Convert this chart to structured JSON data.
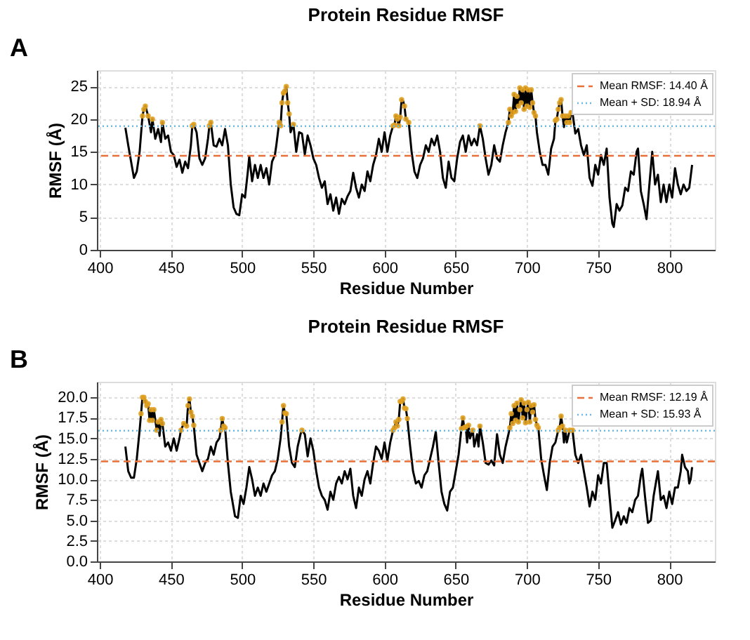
{
  "chart_data": [
    {
      "type": "line",
      "title": "Protein Residue RMSF",
      "xlabel": "Residue Number",
      "ylabel": "RMSF (Å)",
      "annotations": [
        "A"
      ],
      "xlim": [
        398,
        832
      ],
      "xticks": [
        400,
        450,
        500,
        550,
        600,
        650,
        700,
        750,
        800
      ],
      "ylim": [
        0,
        27.5
      ],
      "yticks": [
        0,
        5,
        10,
        15,
        20,
        25
      ],
      "grid": true,
      "legend": "top right",
      "series": [
        {
          "type": "line",
          "color": "#000000",
          "x": [
            418,
            420,
            422,
            424,
            426,
            428,
            430,
            431,
            432,
            434,
            436,
            437,
            439,
            441,
            443,
            444,
            446,
            448,
            450,
            452,
            454,
            456,
            458,
            460,
            462,
            464,
            465,
            466,
            468,
            470,
            472,
            474,
            476,
            477,
            478,
            480,
            482,
            484,
            486,
            488,
            490,
            492,
            494,
            496,
            498,
            500,
            502,
            504,
            505,
            507,
            509,
            511,
            513,
            515,
            517,
            519,
            521,
            523,
            524,
            526,
            527,
            528,
            529,
            530,
            531,
            532,
            533,
            534,
            536,
            538,
            540,
            542,
            544,
            546,
            548,
            550,
            552,
            554,
            556,
            558,
            560,
            562,
            564,
            566,
            568,
            570,
            572,
            574,
            576,
            578,
            580,
            582,
            584,
            586,
            588,
            590,
            592,
            594,
            596,
            598,
            600,
            602,
            604,
            606,
            607,
            608,
            609,
            610,
            611,
            612,
            613,
            614,
            615,
            616,
            617,
            619,
            621,
            623,
            625,
            627,
            629,
            631,
            633,
            635,
            637,
            639,
            641,
            643,
            645,
            647,
            649,
            651,
            653,
            655,
            657,
            659,
            661,
            663,
            665,
            667,
            669,
            671,
            673,
            675,
            677,
            679,
            681,
            683,
            685,
            687,
            688,
            689,
            690,
            691,
            692,
            693,
            694,
            695,
            696,
            697,
            698,
            699,
            700,
            701,
            702,
            703,
            704,
            705,
            706,
            707,
            709,
            711,
            713,
            715,
            717,
            719,
            720,
            721,
            722,
            723,
            724,
            725,
            726,
            727,
            728,
            729,
            730,
            731,
            732,
            734,
            736,
            738,
            740,
            742,
            744,
            746,
            748,
            750,
            752,
            754,
            756,
            758,
            760,
            761,
            763,
            765,
            767,
            769,
            771,
            773,
            775,
            777,
            778,
            780,
            782,
            784,
            786,
            788,
            790,
            792,
            794,
            796,
            798,
            800,
            802,
            804,
            806,
            808,
            810,
            812,
            814,
            816
          ],
          "values": [
            18.7,
            16,
            13.5,
            11,
            12,
            15,
            20.5,
            21.5,
            22,
            20.5,
            18,
            20,
            17,
            18.5,
            16.5,
            19.5,
            17,
            17.5,
            15,
            14.5,
            12.7,
            13.8,
            11.8,
            13.5,
            12.5,
            16,
            19,
            19.2,
            18,
            14,
            13,
            14,
            17,
            19,
            19.5,
            16,
            15.8,
            17,
            16,
            18.5,
            16,
            10,
            6.5,
            5.5,
            5.3,
            8.5,
            8,
            12,
            14.3,
            10.5,
            13,
            11,
            13,
            11,
            12.5,
            10,
            13.5,
            14.5,
            16,
            19.5,
            19,
            22.5,
            24,
            24.3,
            25,
            22.5,
            20.8,
            18,
            19.2,
            15,
            18,
            17.8,
            14.6,
            17.5,
            16,
            14,
            13,
            11,
            9.5,
            10.5,
            7,
            8.5,
            6,
            8,
            5.5,
            7.8,
            7,
            8.2,
            9,
            11.8,
            9.5,
            8,
            10,
            9,
            12,
            10.5,
            13,
            14.5,
            17,
            15,
            18,
            15,
            17.5,
            19,
            19.1,
            20.5,
            20,
            19,
            20.3,
            23,
            22.8,
            22,
            20,
            19.8,
            19.5,
            15,
            12,
            11,
            13,
            14,
            16,
            15,
            17,
            16,
            17.5,
            15,
            11,
            9.5,
            13.5,
            11,
            10.5,
            14,
            16.5,
            17.5,
            15,
            17.5,
            16,
            17,
            16,
            19,
            17,
            14,
            11.5,
            13,
            16,
            14,
            13.5,
            16,
            18,
            19.5,
            21.5,
            20.5,
            21,
            23.8,
            21.2,
            23.5,
            22,
            24.8,
            22.5,
            24.5,
            21.5,
            24.8,
            22,
            24.5,
            21.8,
            24.5,
            22.5,
            21,
            20.5,
            18,
            15,
            13,
            13,
            11.5,
            15.5,
            17,
            19.8,
            20,
            21.5,
            22.5,
            23,
            20.5,
            18.8,
            20.5,
            19.5,
            20.5,
            19.5,
            21,
            21,
            17.8,
            18.5,
            16,
            14.5,
            16,
            11,
            9.8,
            13,
            11.5,
            14.5,
            13,
            15.5,
            8,
            4,
            3.5,
            7,
            6,
            6.8,
            9.5,
            9,
            12,
            11.5,
            15,
            15.5,
            9,
            7,
            4.7,
            10,
            15,
            10,
            11.5,
            7.3,
            10,
            7.3,
            10,
            8,
            12.5,
            10,
            8.5,
            10,
            9,
            9.5,
            13
          ]
        },
        {
          "type": "scatter",
          "color": "#e0a020",
          "marker": "circle",
          "x": [
            430,
            431,
            432,
            434,
            437,
            444,
            465,
            466,
            477,
            478,
            526,
            527,
            528,
            529,
            530,
            531,
            532,
            533,
            536,
            606,
            607,
            608,
            609,
            610,
            611,
            612,
            614,
            615,
            617,
            667,
            687,
            688,
            689,
            690,
            691,
            692,
            693,
            694,
            695,
            696,
            697,
            698,
            699,
            700,
            701,
            702,
            703,
            704,
            705,
            706,
            720,
            721,
            722,
            723,
            724,
            725,
            727,
            728,
            729,
            730,
            731,
            732
          ],
          "values": [
            20.5,
            21.5,
            22,
            20.5,
            20,
            19.5,
            19,
            19.2,
            19,
            19.5,
            19.5,
            19,
            22.5,
            24,
            24.3,
            25,
            22.5,
            20.8,
            19.2,
            19,
            19.1,
            20.5,
            20,
            19,
            20.3,
            23,
            22,
            20,
            19.5,
            19,
            19.5,
            21.5,
            20.5,
            21,
            23.8,
            21.2,
            23.5,
            22,
            24.8,
            22.5,
            24.5,
            21.5,
            24.8,
            22,
            24.5,
            21.8,
            24.5,
            22.5,
            21,
            20.5,
            19.8,
            20,
            21.5,
            22.5,
            23,
            20.5,
            20.5,
            19.5,
            20.5,
            19.5,
            21,
            21
          ]
        }
      ],
      "ref_lines": [
        {
          "axis": "y",
          "value": 14.4,
          "label": "Mean RMSF: 14.40 Å",
          "color": "#e8703a",
          "line_style": "dashed"
        },
        {
          "axis": "y",
          "value": 18.94,
          "label": "Mean + SD: 18.94 Å",
          "color": "#6bb8e0",
          "line_style": "dotted"
        }
      ]
    },
    {
      "type": "line",
      "title": "Protein Residue RMSF",
      "xlabel": "Residue Number",
      "ylabel": "RMSF (Å)",
      "annotations": [
        "B"
      ],
      "xlim": [
        398,
        832
      ],
      "xticks": [
        400,
        450,
        500,
        550,
        600,
        650,
        700,
        750,
        800
      ],
      "ylim": [
        0,
        21.9
      ],
      "yticks": [
        {
          "value": 0,
          "label": "0.0"
        },
        {
          "value": 2.5,
          "label": "2.5"
        },
        {
          "value": 5,
          "label": "5.0"
        },
        {
          "value": 7.5,
          "label": "7.5"
        },
        {
          "value": 10,
          "label": "10.0"
        },
        {
          "value": 12.5,
          "label": "12.5"
        },
        {
          "value": 15,
          "label": "15.0"
        },
        {
          "value": 17.5,
          "label": "17.5"
        },
        {
          "value": 20,
          "label": "20.0"
        }
      ],
      "grid": true,
      "legend": "top right",
      "series": [
        {
          "type": "line",
          "color": "#000000",
          "x": [
            418,
            420,
            422,
            424,
            426,
            428,
            429,
            430,
            431,
            432,
            433,
            434,
            435,
            436,
            437,
            438,
            440,
            441,
            442,
            443,
            444,
            446,
            448,
            450,
            452,
            454,
            456,
            457,
            459,
            461,
            462,
            463,
            464,
            465,
            466,
            468,
            470,
            472,
            474,
            476,
            478,
            480,
            482,
            484,
            485,
            486,
            487,
            488,
            490,
            492,
            494,
            495,
            497,
            499,
            501,
            503,
            505,
            507,
            509,
            511,
            513,
            515,
            517,
            519,
            521,
            523,
            525,
            527,
            528,
            529,
            530,
            531,
            533,
            535,
            537,
            539,
            541,
            542,
            544,
            546,
            548,
            550,
            552,
            554,
            556,
            558,
            560,
            562,
            564,
            566,
            568,
            570,
            572,
            574,
            576,
            578,
            580,
            582,
            584,
            586,
            588,
            590,
            592,
            594,
            596,
            598,
            600,
            602,
            604,
            606,
            607,
            608,
            609,
            610,
            611,
            612,
            613,
            614,
            615,
            616,
            618,
            620,
            622,
            624,
            626,
            628,
            630,
            632,
            634,
            636,
            638,
            640,
            642,
            644,
            646,
            648,
            650,
            652,
            654,
            655,
            656,
            657,
            658,
            659,
            660,
            662,
            663,
            665,
            666,
            667,
            669,
            671,
            673,
            675,
            677,
            679,
            681,
            683,
            685,
            687,
            688,
            689,
            690,
            691,
            692,
            693,
            694,
            695,
            696,
            697,
            698,
            699,
            700,
            701,
            702,
            703,
            704,
            705,
            706,
            707,
            708,
            710,
            712,
            714,
            716,
            718,
            720,
            722,
            723,
            724,
            725,
            726,
            727,
            728,
            730,
            732,
            734,
            736,
            738,
            740,
            742,
            744,
            746,
            748,
            750,
            752,
            754,
            756,
            758,
            760,
            762,
            764,
            766,
            768,
            770,
            772,
            774,
            776,
            778,
            780,
            781,
            783,
            785,
            787,
            789,
            791,
            792,
            794,
            796,
            798,
            800,
            802,
            804,
            806,
            808,
            809,
            811,
            813,
            814,
            815,
            816
          ],
          "values": [
            14,
            11,
            10.2,
            10.2,
            12.5,
            16,
            18,
            20,
            20,
            19.5,
            19,
            19.2,
            17.2,
            18.5,
            17.2,
            18.5,
            16,
            17,
            15.3,
            17.3,
            16.8,
            14,
            14.5,
            13.5,
            15,
            13.5,
            15,
            16,
            16.8,
            16.5,
            19,
            19.8,
            18.2,
            17.7,
            16.6,
            13,
            12,
            11,
            12,
            12.5,
            14,
            13,
            14.5,
            15,
            16,
            17.4,
            16.5,
            16.3,
            12,
            8.5,
            6.5,
            5.5,
            5.3,
            8,
            7,
            9,
            11.5,
            10,
            8,
            9,
            8,
            9.5,
            8.5,
            9.5,
            10.5,
            11,
            12.5,
            15,
            17,
            19,
            18.1,
            18,
            14,
            12,
            11.5,
            14,
            15.5,
            16,
            15.5,
            12.8,
            15,
            13.5,
            11,
            9,
            8,
            7.5,
            6.3,
            8.5,
            7.5,
            9.5,
            10.3,
            9.5,
            11,
            10,
            11.3,
            8,
            6.5,
            9,
            8,
            10,
            11,
            9.5,
            12,
            14,
            13.5,
            12.5,
            14.5,
            12.3,
            14.5,
            16,
            16.3,
            17,
            16.5,
            17.3,
            19.5,
            19.5,
            19.8,
            18.7,
            18.6,
            17.4,
            14,
            11,
            9.5,
            9.8,
            9,
            10.5,
            11,
            12.5,
            14,
            15.8,
            12,
            8.5,
            7,
            6.2,
            8.5,
            9,
            11,
            13,
            16.2,
            17.5,
            16.3,
            16.4,
            14.5,
            16.6,
            15,
            16,
            14,
            15.5,
            14,
            16.5,
            14.5,
            12,
            11.8,
            12.3,
            11.7,
            15.5,
            13,
            12,
            14,
            15.5,
            16.3,
            18,
            16.8,
            19,
            17.2,
            19.3,
            17,
            18.5,
            19.7,
            17.5,
            19.3,
            16.9,
            18.5,
            19.4,
            17,
            19,
            18.2,
            19.1,
            17.3,
            16.6,
            16.3,
            12.5,
            10.5,
            8.7,
            12,
            14,
            14.5,
            16,
            16.3,
            17.7,
            16.5,
            14.5,
            16,
            14.5,
            16,
            16,
            13,
            12,
            13,
            11,
            9,
            6.7,
            8.5,
            7.5,
            10.5,
            9.5,
            12,
            12,
            8,
            4.1,
            5,
            6,
            4.5,
            5.5,
            4.7,
            6.5,
            6,
            7.5,
            8,
            10.5,
            11.3,
            7.8,
            4.7,
            5,
            8,
            10,
            11,
            7.5,
            8,
            6.5,
            8.5,
            7,
            9,
            9,
            11,
            13,
            11.5,
            11,
            9.5,
            10,
            11.5
          ]
        },
        {
          "type": "scatter",
          "color": "#e0a020",
          "marker": "circle",
          "x": [
            429,
            430,
            431,
            432,
            433,
            434,
            435,
            436,
            437,
            438,
            440,
            441,
            443,
            444,
            457,
            459,
            461,
            462,
            463,
            464,
            465,
            466,
            485,
            486,
            487,
            488,
            528,
            529,
            530,
            531,
            542,
            606,
            607,
            608,
            609,
            610,
            611,
            612,
            613,
            614,
            615,
            616,
            654,
            655,
            656,
            657,
            659,
            662,
            667,
            688,
            689,
            690,
            691,
            692,
            693,
            694,
            695,
            696,
            697,
            698,
            699,
            700,
            701,
            702,
            703,
            704,
            705,
            706,
            707,
            708,
            722,
            723,
            724,
            725,
            727,
            730,
            732
          ],
          "values": [
            18,
            20,
            20,
            19.5,
            19,
            19.2,
            17.2,
            18.5,
            17.2,
            18.5,
            16,
            17,
            17.3,
            16.8,
            16,
            16.8,
            16.5,
            19,
            19.8,
            18.2,
            17.7,
            16.6,
            16,
            17.4,
            16.5,
            16.3,
            17,
            19,
            18.1,
            18,
            16,
            16,
            16.3,
            17,
            16.5,
            17.3,
            19.5,
            19.5,
            19.8,
            18.7,
            18.6,
            17.4,
            16.2,
            17.5,
            16.3,
            16.4,
            16.6,
            16,
            16.5,
            16.3,
            18,
            16.8,
            19,
            17.2,
            19.3,
            17,
            18.5,
            19.7,
            17.5,
            19.3,
            16.9,
            18.5,
            19.4,
            17,
            19,
            18.2,
            19.1,
            17.3,
            16.6,
            16.3,
            16,
            16.3,
            17.7,
            16.5,
            16,
            16,
            16
          ]
        }
      ],
      "ref_lines": [
        {
          "axis": "y",
          "value": 12.19,
          "label": "Mean RMSF: 12.19 Å",
          "color": "#e8703a",
          "line_style": "dashed"
        },
        {
          "axis": "y",
          "value": 15.93,
          "label": "Mean + SD: 15.93 Å",
          "color": "#6bb8e0",
          "line_style": "dotted"
        }
      ]
    }
  ]
}
